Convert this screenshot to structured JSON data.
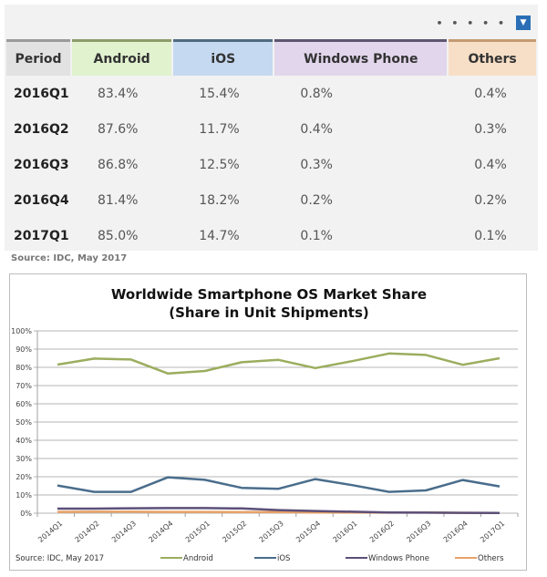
{
  "toolbar": {
    "more_label": "• • • • •",
    "dropdown_icon": "▼"
  },
  "table": {
    "headers": [
      "Period",
      "Android",
      "iOS",
      "Windows Phone",
      "Others"
    ],
    "rows": [
      [
        "2016Q1",
        "83.4%",
        "15.4%",
        "0.8%",
        "0.4%"
      ],
      [
        "2016Q2",
        "87.6%",
        "11.7%",
        "0.4%",
        "0.3%"
      ],
      [
        "2016Q3",
        "86.8%",
        "12.5%",
        "0.3%",
        "0.4%"
      ],
      [
        "2016Q4",
        "81.4%",
        "18.2%",
        "0.2%",
        "0.2%"
      ],
      [
        "2017Q1",
        "85.0%",
        "14.7%",
        "0.1%",
        "0.1%"
      ]
    ],
    "source": "Source: IDC, May 2017"
  },
  "chart_data": {
    "type": "line",
    "title": "Worldwide Smartphone OS Market Share",
    "subtitle": "(Share in Unit Shipments)",
    "xlabel": "",
    "ylabel": "",
    "ylim": [
      0,
      100
    ],
    "yticks": [
      "0%",
      "10%",
      "20%",
      "30%",
      "40%",
      "50%",
      "60%",
      "70%",
      "80%",
      "90%",
      "100%"
    ],
    "grid": true,
    "legend_position": "bottom",
    "source": "Source: IDC, May 2017",
    "categories": [
      "2014Q1",
      "2014Q2",
      "2014Q3",
      "2014Q4",
      "2015Q1",
      "2015Q2",
      "2015Q3",
      "2015Q4",
      "2016Q1",
      "2016Q2",
      "2016Q3",
      "2016Q4",
      "2017Q1"
    ],
    "series": [
      {
        "name": "Android",
        "color": "#9bad5e",
        "values": [
          81.5,
          84.8,
          84.3,
          76.6,
          78.0,
          82.8,
          84.1,
          79.6,
          83.4,
          87.6,
          86.8,
          81.4,
          85.0
        ]
      },
      {
        "name": "iOS",
        "color": "#4a6d8c",
        "values": [
          15.2,
          11.7,
          11.7,
          19.7,
          18.3,
          13.9,
          13.4,
          18.7,
          15.4,
          11.7,
          12.5,
          18.2,
          14.7
        ]
      },
      {
        "name": "Windows Phone",
        "color": "#5c4f78",
        "values": [
          2.5,
          2.5,
          2.7,
          2.8,
          2.8,
          2.6,
          1.7,
          1.2,
          0.8,
          0.4,
          0.3,
          0.2,
          0.1
        ]
      },
      {
        "name": "Others",
        "color": "#e8a266",
        "values": [
          0.7,
          0.8,
          0.8,
          0.7,
          0.7,
          0.6,
          0.6,
          0.4,
          0.4,
          0.3,
          0.4,
          0.2,
          0.1
        ]
      }
    ]
  }
}
